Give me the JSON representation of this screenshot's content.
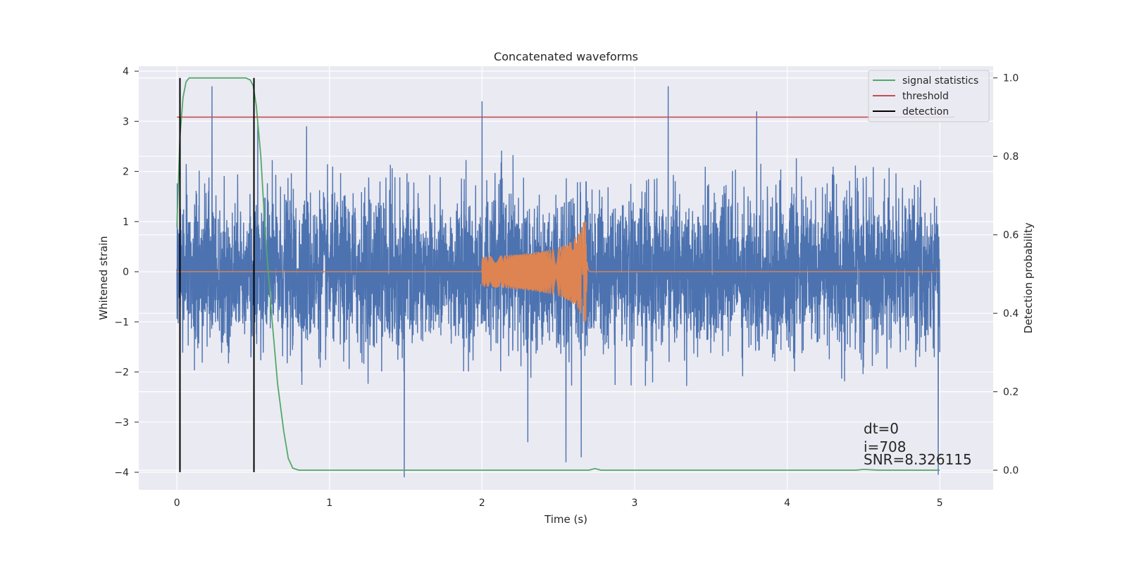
{
  "chart_data": {
    "type": "line",
    "title": "Concatenated waveforms",
    "xlabel": "Time (s)",
    "ylabel_left": "Whitened strain",
    "ylabel_right": "Detection probability",
    "xlim": [
      -0.25,
      5.35
    ],
    "ylim_left": [
      -4.35,
      4.1
    ],
    "ylim_right": [
      -0.05,
      1.03
    ],
    "x_ticks": [
      "0",
      "1",
      "2",
      "3",
      "4",
      "5"
    ],
    "x_tick_values": [
      0,
      1,
      2,
      3,
      4,
      5
    ],
    "y_left_ticks": [
      "−4",
      "−3",
      "−2",
      "−1",
      "0",
      "1",
      "2",
      "3",
      "4"
    ],
    "y_left_tick_values": [
      -4,
      -3,
      -2,
      -1,
      0,
      1,
      2,
      3,
      4
    ],
    "y_right_ticks": [
      "0.0",
      "0.2",
      "0.4",
      "0.6",
      "0.8",
      "1.0"
    ],
    "y_right_tick_values": [
      0,
      0.2,
      0.4,
      0.6,
      0.8,
      1.0
    ],
    "grid": true,
    "legend_position": "top-right",
    "series": [
      {
        "name": "",
        "axis": "left",
        "color": "#4c72b0",
        "kind": "noise",
        "x_range": [
          0,
          5
        ],
        "amplitude_envelope": 2.0,
        "peaks": [
          {
            "x": 0.23,
            "y": 3.7
          },
          {
            "x": 0.53,
            "y": 3.0
          },
          {
            "x": 0.85,
            "y": 2.9
          },
          {
            "x": 2.0,
            "y": 3.4
          },
          {
            "x": 3.22,
            "y": 3.7
          },
          {
            "x": 3.8,
            "y": 3.2
          },
          {
            "x": 1.49,
            "y": -4.1
          },
          {
            "x": 2.55,
            "y": -3.8
          },
          {
            "x": 2.65,
            "y": -3.7
          },
          {
            "x": 2.3,
            "y": -3.4
          },
          {
            "x": 4.99,
            "y": -4.05
          }
        ]
      },
      {
        "name": "",
        "axis": "left",
        "color": "#dd8452",
        "kind": "chirp",
        "x_range": [
          0,
          5
        ],
        "chirp_start": 2.0,
        "chirp_end": 2.68,
        "start_amplitude": 0.3,
        "peak_amplitude": 1.0,
        "peak_min": -1.25
      },
      {
        "name": "signal statistics",
        "axis": "right",
        "color": "#55a868",
        "points": [
          [
            0.0,
            0.62
          ],
          [
            0.02,
            0.85
          ],
          [
            0.04,
            0.95
          ],
          [
            0.06,
            0.99
          ],
          [
            0.08,
            1.0
          ],
          [
            0.45,
            1.0
          ],
          [
            0.48,
            0.995
          ],
          [
            0.5,
            0.98
          ],
          [
            0.52,
            0.93
          ],
          [
            0.55,
            0.8
          ],
          [
            0.58,
            0.6
          ],
          [
            0.62,
            0.4
          ],
          [
            0.66,
            0.22
          ],
          [
            0.7,
            0.1
          ],
          [
            0.73,
            0.03
          ],
          [
            0.76,
            0.005
          ],
          [
            0.8,
            0.0
          ],
          [
            2.7,
            0.0
          ],
          [
            2.74,
            0.004
          ],
          [
            2.78,
            0.0
          ],
          [
            4.45,
            0.0
          ],
          [
            4.5,
            0.002
          ],
          [
            4.6,
            0.0
          ],
          [
            5.0,
            0.0
          ]
        ]
      },
      {
        "name": "threshold",
        "axis": "right",
        "color": "#c44e52",
        "points": [
          [
            0.0,
            0.9
          ],
          [
            5.1,
            0.9
          ]
        ]
      },
      {
        "name": "detection",
        "axis": "right",
        "color": "#000000",
        "vlines": [
          0.02,
          0.505
        ],
        "vline_range": [
          -0.005,
          1.0
        ]
      }
    ],
    "annotations": [
      "dt=0",
      "i=708",
      "SNR=8.326115"
    ]
  },
  "colors": {
    "axes_background": "#eaeaf2",
    "grid": "#ffffff",
    "text": "#262626"
  }
}
